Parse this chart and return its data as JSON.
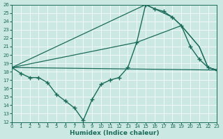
{
  "xlabel": "Humidex (Indice chaleur)",
  "bg_color": "#cce8e2",
  "line_color": "#1a6b5a",
  "xmin": 0,
  "xmax": 23,
  "ymin": 12,
  "ymax": 26,
  "line_markers": {
    "x": [
      0,
      1,
      2,
      3,
      4,
      5,
      6,
      7,
      8,
      9,
      10,
      11,
      12,
      13,
      14,
      15,
      16,
      17,
      18,
      19,
      20,
      21,
      22,
      23
    ],
    "y": [
      18.5,
      17.8,
      17.3,
      17.3,
      16.7,
      15.3,
      14.5,
      13.7,
      12.2,
      14.7,
      16.5,
      17.0,
      17.3,
      18.5,
      21.5,
      26.0,
      25.5,
      25.2,
      24.5,
      23.5,
      21.0,
      19.5,
      18.5,
      18.2
    ]
  },
  "line_upper": {
    "x": [
      0,
      15,
      16,
      18,
      19,
      21,
      22,
      23
    ],
    "y": [
      18.5,
      26.0,
      25.5,
      24.5,
      23.5,
      21.0,
      18.5,
      18.2
    ]
  },
  "line_mid": {
    "x": [
      0,
      14,
      19,
      21,
      22,
      23
    ],
    "y": [
      18.5,
      21.5,
      23.5,
      21.0,
      18.5,
      18.2
    ]
  },
  "line_flat": {
    "x": [
      0,
      23
    ],
    "y": [
      18.5,
      18.2
    ]
  }
}
